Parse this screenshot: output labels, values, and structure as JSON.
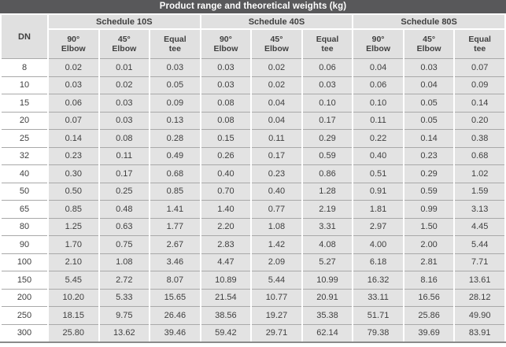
{
  "title_bar": {
    "text": "Product range and theoretical weights (kg)"
  },
  "table": {
    "dn_header": "DN",
    "groups": [
      "Schedule 10S",
      "Schedule 40S",
      "Schedule 80S"
    ],
    "column_types": [
      {
        "line1": "90°",
        "line2": "Elbow"
      },
      {
        "line1": "45°",
        "line2": "Elbow"
      },
      {
        "line1": "Equal",
        "line2": "tee"
      }
    ],
    "rows": [
      {
        "dn": "8",
        "values": [
          "0.02",
          "0.01",
          "0.03",
          "0.03",
          "0.02",
          "0.06",
          "0.04",
          "0.03",
          "0.07"
        ]
      },
      {
        "dn": "10",
        "values": [
          "0.03",
          "0.02",
          "0.05",
          "0.03",
          "0.02",
          "0.03",
          "0.06",
          "0.04",
          "0.09"
        ]
      },
      {
        "dn": "15",
        "values": [
          "0.06",
          "0.03",
          "0.09",
          "0.08",
          "0.04",
          "0.10",
          "0.10",
          "0.05",
          "0.14"
        ]
      },
      {
        "dn": "20",
        "values": [
          "0.07",
          "0.03",
          "0.13",
          "0.08",
          "0.04",
          "0.17",
          "0.11",
          "0.05",
          "0.20"
        ]
      },
      {
        "dn": "25",
        "values": [
          "0.14",
          "0.08",
          "0.28",
          "0.15",
          "0.11",
          "0.29",
          "0.22",
          "0.14",
          "0.38"
        ]
      },
      {
        "dn": "32",
        "values": [
          "0.23",
          "0.11",
          "0.49",
          "0.26",
          "0.17",
          "0.59",
          "0.40",
          "0.23",
          "0.68"
        ]
      },
      {
        "dn": "40",
        "values": [
          "0.30",
          "0.17",
          "0.68",
          "0.40",
          "0.23",
          "0.86",
          "0.51",
          "0.29",
          "1.02"
        ]
      },
      {
        "dn": "50",
        "values": [
          "0.50",
          "0.25",
          "0.85",
          "0.70",
          "0.40",
          "1.28",
          "0.91",
          "0.59",
          "1.59"
        ]
      },
      {
        "dn": "65",
        "values": [
          "0.85",
          "0.48",
          "1.41",
          "1.40",
          "0.77",
          "2.19",
          "1.81",
          "0.99",
          "3.13"
        ]
      },
      {
        "dn": "80",
        "values": [
          "1.25",
          "0.63",
          "1.77",
          "2.20",
          "1.08",
          "3.31",
          "2.97",
          "1.50",
          "4.45"
        ]
      },
      {
        "dn": "90",
        "values": [
          "1.70",
          "0.75",
          "2.67",
          "2.83",
          "1.42",
          "4.08",
          "4.00",
          "2.00",
          "5.44"
        ]
      },
      {
        "dn": "100",
        "values": [
          "2.10",
          "1.08",
          "3.46",
          "4.47",
          "2.09",
          "5.27",
          "6.18",
          "2.81",
          "7.71"
        ]
      },
      {
        "dn": "150",
        "values": [
          "5.45",
          "2.72",
          "8.07",
          "10.89",
          "5.44",
          "10.99",
          "16.32",
          "8.16",
          "13.61"
        ]
      },
      {
        "dn": "200",
        "values": [
          "10.20",
          "5.33",
          "15.65",
          "21.54",
          "10.77",
          "20.91",
          "33.11",
          "16.56",
          "28.12"
        ]
      },
      {
        "dn": "250",
        "values": [
          "18.15",
          "9.75",
          "26.46",
          "38.56",
          "19.27",
          "35.38",
          "51.71",
          "25.86",
          "49.90"
        ]
      },
      {
        "dn": "300",
        "values": [
          "25.80",
          "13.62",
          "39.46",
          "59.42",
          "29.71",
          "62.14",
          "79.38",
          "39.69",
          "83.91"
        ]
      }
    ]
  },
  "colors": {
    "title_bg": "#58585a",
    "header_bg": "#e0e0e0",
    "cell_bg": "#e3e3e3",
    "dn_cell_bg": "#ffffff",
    "grid_line": "#a9a9a9",
    "bottom_rule": "#8a8a8a",
    "text": "#3f3f3f",
    "title_text": "#ffffff"
  }
}
